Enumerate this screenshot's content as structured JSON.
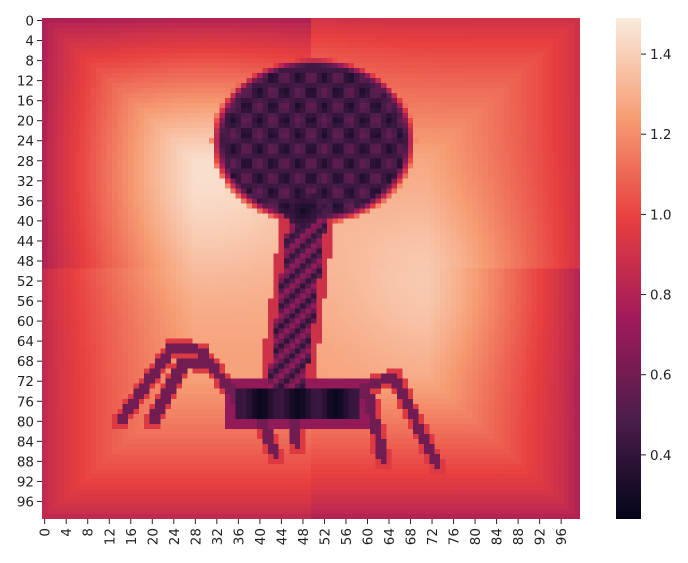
{
  "chart_data": {
    "type": "heatmap",
    "title": "",
    "xlabel": "",
    "ylabel": "",
    "x_ticks": [
      0,
      4,
      8,
      12,
      16,
      20,
      24,
      28,
      32,
      36,
      40,
      44,
      48,
      52,
      56,
      60,
      64,
      68,
      72,
      76,
      80,
      84,
      88,
      92,
      96
    ],
    "y_ticks": [
      0,
      4,
      8,
      12,
      16,
      20,
      24,
      28,
      32,
      36,
      40,
      44,
      48,
      52,
      56,
      60,
      64,
      68,
      72,
      76,
      80,
      84,
      88,
      92,
      96
    ],
    "grid_size": [
      100,
      100
    ],
    "colormap": "rocket",
    "colormap_stops": [
      "#03051a",
      "#4c1d4b",
      "#a11a5b",
      "#e83f3f",
      "#f69c73",
      "#faebdd"
    ],
    "value_range": [
      0.24,
      1.49
    ],
    "colorbar_ticks": [
      0.4,
      0.6,
      0.8,
      1.0,
      1.2,
      1.4
    ],
    "subject": "bacteriophage silhouette",
    "background_features": [
      {
        "kind": "bright_blob",
        "cx": 30,
        "cy": 30,
        "r": 22,
        "value": 1.45
      },
      {
        "kind": "bright_blob",
        "cx": 72,
        "cy": 52,
        "r": 18,
        "value": 1.38
      }
    ],
    "corner_values": {
      "top_left": 0.78,
      "top_right": 0.9,
      "bottom_left": 0.85,
      "bottom_right": 0.8
    },
    "head": {
      "cx": 50,
      "cy": 24,
      "rx": 17,
      "ry": 15,
      "value": 0.45
    },
    "neck": {
      "x": 48,
      "y": 38,
      "value": 0.3
    },
    "tail": {
      "x_top": 49,
      "y_top": 38,
      "x_bottom": 45,
      "y_bottom": 73,
      "width": 7,
      "value": 0.55
    },
    "baseplate": {
      "x0": 34,
      "x1": 60,
      "y0": 72,
      "y1": 81,
      "value": 0.35
    },
    "legs": [
      [
        [
          36,
          76
        ],
        [
          29,
          66
        ],
        [
          24,
          65
        ],
        [
          14,
          80
        ]
      ],
      [
        [
          37,
          77
        ],
        [
          31,
          69
        ],
        [
          26,
          68
        ],
        [
          20,
          80
        ]
      ],
      [
        [
          58,
          74
        ],
        [
          65,
          71
        ],
        [
          73,
          89
        ]
      ],
      [
        [
          55,
          75
        ],
        [
          60,
          74
        ],
        [
          63,
          88
        ]
      ],
      [
        [
          46,
          77
        ],
        [
          47,
          85
        ]
      ],
      [
        [
          40,
          79
        ],
        [
          43,
          87
        ]
      ]
    ],
    "leg_value": 0.6
  }
}
